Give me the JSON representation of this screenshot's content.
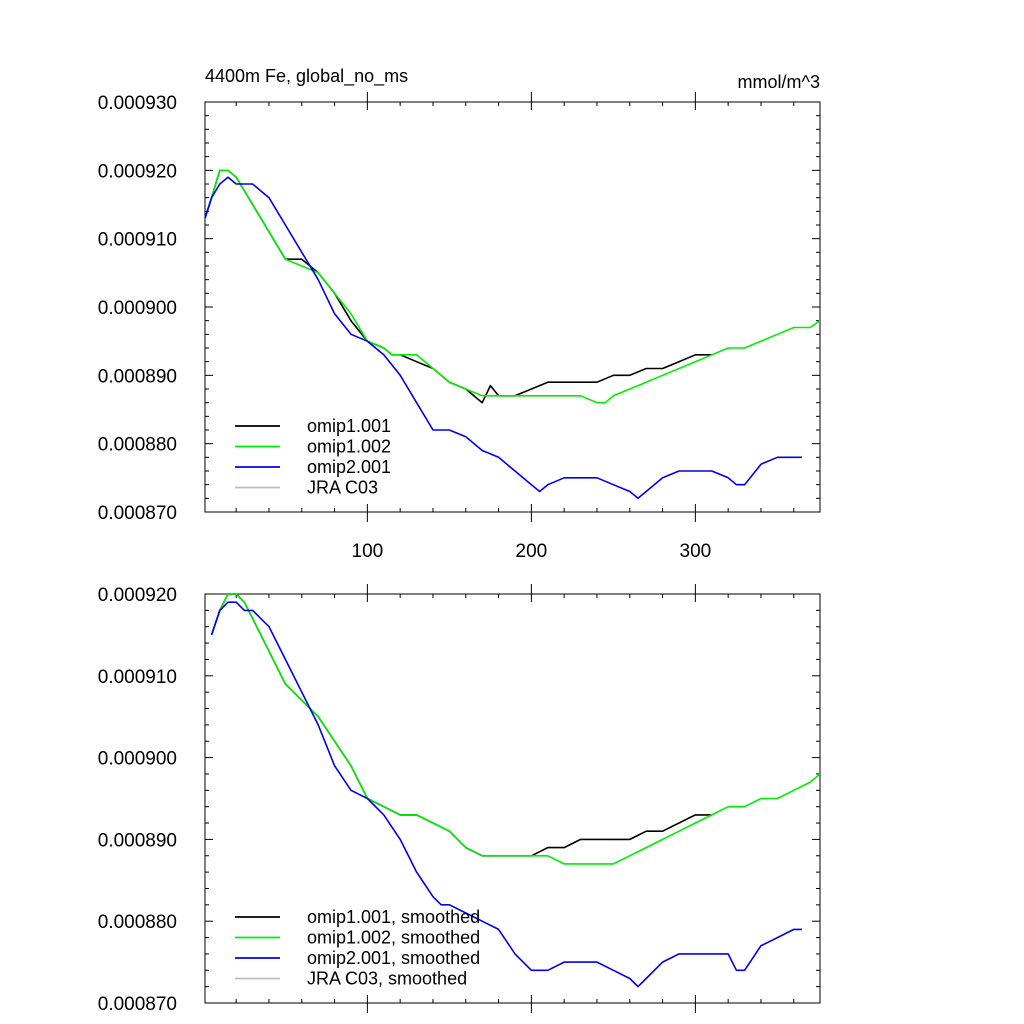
{
  "title": "4400m Fe, global_no_ms",
  "units": "mmol/m^3",
  "colors": {
    "omip1_001": "#000000",
    "omip1_002": "#00ee00",
    "omip2_001": "#0000ee",
    "jra": "#bbbbbb"
  },
  "chart_data": [
    {
      "type": "line",
      "panel": "top",
      "title": "4400m Fe, global_no_ms",
      "units": "mmol/m^3",
      "xlim": [
        1,
        376
      ],
      "ylim": [
        0.00087,
        0.00093
      ],
      "xticks": [
        100,
        200,
        300
      ],
      "xtick_labels": [
        "100",
        "200",
        "300"
      ],
      "yticks": [
        0.00087,
        0.00088,
        0.00089,
        0.0009,
        0.00091,
        0.00092,
        0.00093
      ],
      "ytick_labels": [
        "0.000870",
        "0.000880",
        "0.000890",
        "0.000900",
        "0.000910",
        "0.000920",
        "0.000930"
      ],
      "legend_position": "bottom-left",
      "series": [
        {
          "name": "omip1.001",
          "color": "#000000",
          "x": [
            1,
            5,
            10,
            15,
            20,
            25,
            30,
            40,
            50,
            60,
            70,
            80,
            90,
            100,
            110,
            115,
            120,
            130,
            140,
            150,
            160,
            170,
            175,
            180,
            185,
            190,
            200,
            210,
            220,
            230,
            240,
            250,
            260,
            270,
            280,
            290,
            300,
            310
          ],
          "y": [
            0.000913,
            0.000916,
            0.00092,
            0.00092,
            0.000919,
            0.000917,
            0.000915,
            0.000911,
            0.000907,
            0.000907,
            0.000905,
            0.000902,
            0.000898,
            0.000895,
            0.000894,
            0.000893,
            0.000893,
            0.000892,
            0.000891,
            0.000889,
            0.000888,
            0.000886,
            0.0008885,
            0.000887,
            0.000887,
            0.000887,
            0.000888,
            0.000889,
            0.000889,
            0.000889,
            0.000889,
            0.00089,
            0.00089,
            0.000891,
            0.000891,
            0.000892,
            0.000893,
            0.000893
          ]
        },
        {
          "name": "omip1.002",
          "color": "#00ee00",
          "x": [
            1,
            5,
            10,
            15,
            20,
            25,
            30,
            40,
            50,
            60,
            70,
            80,
            90,
            100,
            110,
            115,
            120,
            130,
            140,
            150,
            160,
            170,
            180,
            190,
            200,
            210,
            220,
            230,
            240,
            245,
            250,
            260,
            270,
            280,
            290,
            300,
            310,
            320,
            330,
            340,
            350,
            360,
            370,
            376
          ],
          "y": [
            0.000913,
            0.000916,
            0.00092,
            0.00092,
            0.000919,
            0.000917,
            0.000915,
            0.000911,
            0.000907,
            0.000906,
            0.000905,
            0.000902,
            0.000899,
            0.000895,
            0.000894,
            0.000893,
            0.000893,
            0.000893,
            0.000891,
            0.000889,
            0.000888,
            0.000887,
            0.000887,
            0.000887,
            0.000887,
            0.000887,
            0.000887,
            0.000887,
            0.000886,
            0.000886,
            0.000887,
            0.000888,
            0.000889,
            0.00089,
            0.000891,
            0.000892,
            0.000893,
            0.000894,
            0.000894,
            0.000895,
            0.000896,
            0.000897,
            0.000897,
            0.000898
          ]
        },
        {
          "name": "omip2.001",
          "color": "#0000ee",
          "x": [
            1,
            5,
            10,
            15,
            20,
            25,
            30,
            40,
            50,
            60,
            70,
            80,
            90,
            100,
            110,
            120,
            130,
            140,
            145,
            150,
            160,
            170,
            180,
            190,
            200,
            205,
            210,
            220,
            230,
            240,
            250,
            260,
            265,
            270,
            280,
            290,
            300,
            310,
            320,
            325,
            330,
            340,
            350,
            360,
            365
          ],
          "y": [
            0.000913,
            0.000916,
            0.000918,
            0.000919,
            0.000918,
            0.000918,
            0.000918,
            0.000916,
            0.000912,
            0.000908,
            0.000904,
            0.000899,
            0.000896,
            0.000895,
            0.000893,
            0.00089,
            0.000886,
            0.000882,
            0.000882,
            0.000882,
            0.000881,
            0.000879,
            0.000878,
            0.000876,
            0.000874,
            0.000873,
            0.000874,
            0.000875,
            0.000875,
            0.000875,
            0.000874,
            0.000873,
            0.000872,
            0.000873,
            0.000875,
            0.000876,
            0.000876,
            0.000876,
            0.000875,
            0.000874,
            0.000874,
            0.000877,
            0.000878,
            0.000878,
            0.000878
          ]
        },
        {
          "name": "JRA C03",
          "color": "#bbbbbb",
          "x": [],
          "y": []
        }
      ]
    },
    {
      "type": "line",
      "panel": "bottom",
      "xlim": [
        1,
        376
      ],
      "ylim": [
        0.00087,
        0.00092
      ],
      "xticks": [
        100,
        200,
        300
      ],
      "yticks": [
        0.00087,
        0.00088,
        0.00089,
        0.0009,
        0.00091,
        0.00092
      ],
      "ytick_labels": [
        "0.000870",
        "0.000880",
        "0.000890",
        "0.000900",
        "0.000910",
        "0.000920"
      ],
      "legend_position": "bottom-left",
      "series": [
        {
          "name": "omip1.001, smoothed",
          "color": "#000000",
          "x": [
            5,
            10,
            15,
            20,
            25,
            30,
            40,
            50,
            60,
            70,
            80,
            90,
            100,
            110,
            120,
            130,
            140,
            150,
            160,
            170,
            180,
            185,
            190,
            200,
            210,
            220,
            230,
            235,
            240,
            250,
            260,
            270,
            280,
            290,
            300,
            310
          ],
          "y": [
            0.000915,
            0.000918,
            0.00092,
            0.00092,
            0.000919,
            0.000917,
            0.000913,
            0.000909,
            0.000907,
            0.000905,
            0.000902,
            0.000899,
            0.000895,
            0.000894,
            0.000893,
            0.000893,
            0.000892,
            0.000891,
            0.000889,
            0.000888,
            0.000888,
            0.000888,
            0.000888,
            0.000888,
            0.000889,
            0.000889,
            0.00089,
            0.00089,
            0.00089,
            0.00089,
            0.00089,
            0.000891,
            0.000891,
            0.000892,
            0.000893,
            0.000893
          ]
        },
        {
          "name": "omip1.002, smoothed",
          "color": "#00ee00",
          "x": [
            5,
            10,
            15,
            20,
            25,
            30,
            40,
            50,
            60,
            70,
            80,
            90,
            100,
            110,
            120,
            130,
            140,
            150,
            160,
            170,
            180,
            190,
            200,
            210,
            220,
            230,
            240,
            245,
            250,
            260,
            270,
            280,
            290,
            300,
            310,
            320,
            330,
            340,
            350,
            360,
            370,
            376
          ],
          "y": [
            0.000915,
            0.000918,
            0.00092,
            0.00092,
            0.000919,
            0.000917,
            0.000913,
            0.000909,
            0.000907,
            0.000905,
            0.000902,
            0.000899,
            0.000895,
            0.000894,
            0.000893,
            0.000893,
            0.000892,
            0.000891,
            0.000889,
            0.000888,
            0.000888,
            0.000888,
            0.000888,
            0.000888,
            0.000887,
            0.000887,
            0.000887,
            0.000887,
            0.000887,
            0.000888,
            0.000889,
            0.00089,
            0.000891,
            0.000892,
            0.000893,
            0.000894,
            0.000894,
            0.000895,
            0.000895,
            0.000896,
            0.000897,
            0.000898
          ]
        },
        {
          "name": "omip2.001, smoothed",
          "color": "#0000ee",
          "x": [
            5,
            10,
            15,
            20,
            25,
            30,
            40,
            50,
            60,
            70,
            80,
            90,
            100,
            110,
            120,
            130,
            140,
            145,
            150,
            160,
            170,
            180,
            190,
            200,
            205,
            210,
            220,
            230,
            240,
            250,
            260,
            265,
            270,
            280,
            290,
            300,
            310,
            320,
            325,
            330,
            340,
            350,
            360,
            365
          ],
          "y": [
            0.000915,
            0.000918,
            0.000919,
            0.000919,
            0.000918,
            0.000918,
            0.000916,
            0.000912,
            0.000908,
            0.000904,
            0.000899,
            0.000896,
            0.000895,
            0.000893,
            0.00089,
            0.000886,
            0.000883,
            0.000882,
            0.000882,
            0.000881,
            0.00088,
            0.000879,
            0.000876,
            0.000874,
            0.000874,
            0.000874,
            0.000875,
            0.000875,
            0.000875,
            0.000874,
            0.000873,
            0.000872,
            0.000873,
            0.000875,
            0.000876,
            0.000876,
            0.000876,
            0.000876,
            0.000874,
            0.000874,
            0.000877,
            0.000878,
            0.000879,
            0.000879
          ]
        },
        {
          "name": "JRA C03, smoothed",
          "color": "#bbbbbb",
          "x": [],
          "y": []
        }
      ]
    }
  ]
}
